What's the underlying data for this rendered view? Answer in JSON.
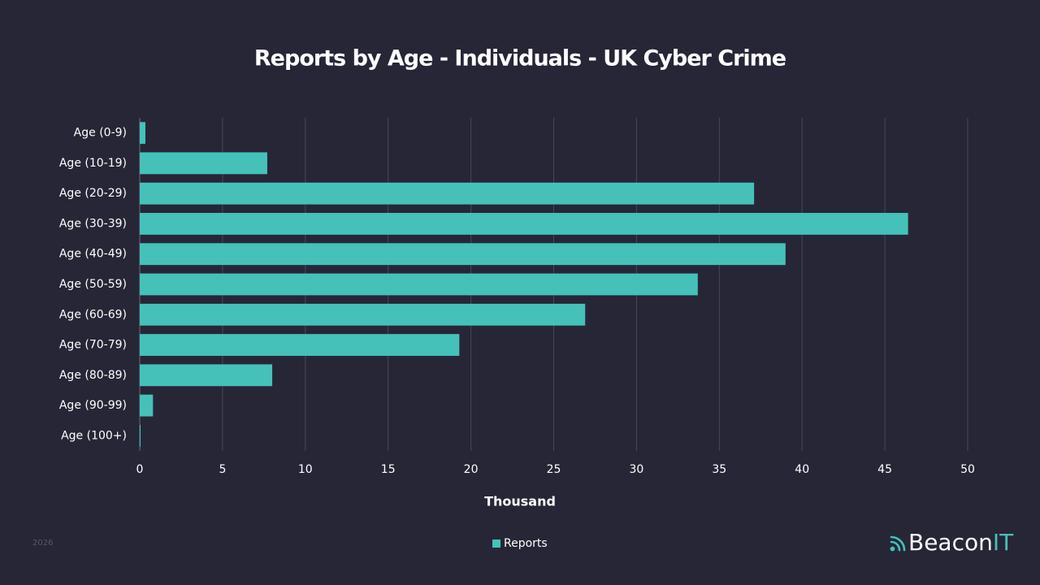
{
  "chart_data": {
    "type": "bar",
    "orientation": "horizontal",
    "title": "Reports by Age - Individuals - UK Cyber Crime",
    "x_label": "Thousand",
    "categories": [
      "Age (0-9)",
      "Age (10-19)",
      "Age (20-29)",
      "Age (30-39)",
      "Age (40-49)",
      "Age (50-59)",
      "Age (60-69)",
      "Age (70-79)",
      "Age (80-89)",
      "Age (90-99)",
      "Age (100+)"
    ],
    "series": [
      {
        "name": "Reports",
        "color": "#45c1b9",
        "values": [
          0.34,
          7.7,
          37.1,
          46.4,
          39.0,
          33.7,
          26.9,
          19.3,
          8.0,
          0.8,
          0.05
        ]
      }
    ],
    "xlim": [
      0,
      50
    ],
    "xticks": [
      0,
      5,
      10,
      15,
      20,
      25,
      30,
      35,
      40,
      45,
      50
    ],
    "grid": true,
    "legend": "bottom"
  },
  "footer": {
    "year": "2026",
    "brand": [
      "Beacon",
      "IT"
    ]
  }
}
